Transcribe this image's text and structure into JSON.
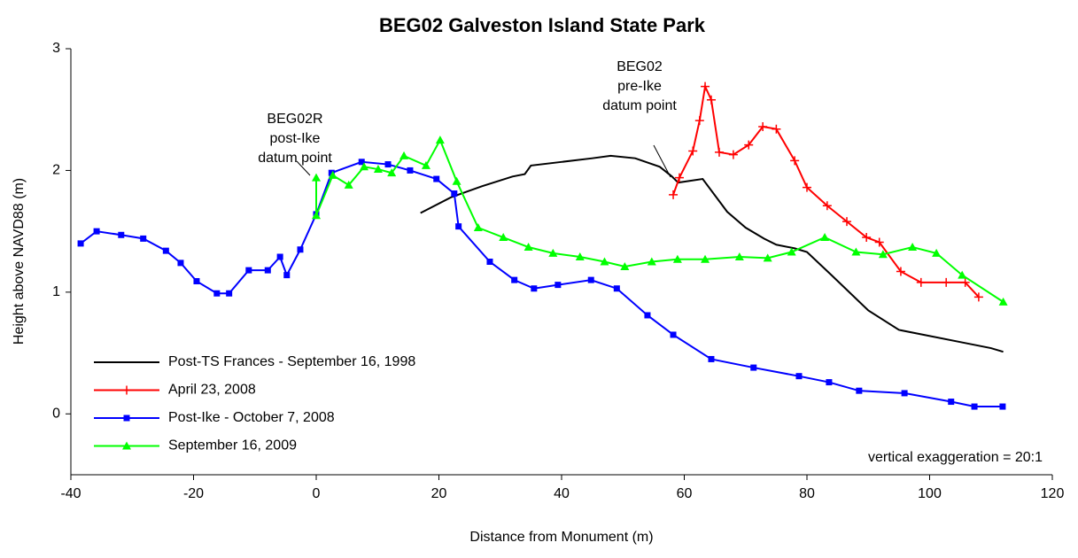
{
  "chart_data": {
    "type": "line",
    "title": "BEG02 Galveston Island State Park",
    "x_label": "Distance from Monument (m)",
    "y_label": "Height above NAVD88 (m)",
    "xlim": [
      -40,
      120
    ],
    "xticks": [
      -40,
      -20,
      0,
      20,
      40,
      60,
      80,
      100,
      120
    ],
    "ylim": [
      -0.5,
      3
    ],
    "yticks": [
      0,
      1,
      2,
      3
    ],
    "legend": "lower left",
    "annotations": [
      {
        "text": [
          "BEG02R",
          "post-Ike",
          "datum point"
        ]
      },
      {
        "text": [
          "BEG02",
          "pre-Ike",
          "datum point"
        ]
      },
      {
        "text": [
          "vertical exaggeration = 20:1"
        ]
      }
    ],
    "series": [
      {
        "name": "Post-TS Frances - September 16, 1998",
        "color": "#000000",
        "marker": "none",
        "x": [
          17,
          22,
          27,
          32,
          34,
          35,
          40,
          45,
          48,
          52,
          56,
          58,
          59,
          63,
          67,
          70,
          73,
          75,
          78,
          80,
          84,
          90,
          95,
          105,
          110,
          112
        ],
        "values": [
          1.65,
          1.78,
          1.87,
          1.95,
          1.97,
          2.04,
          2.07,
          2.1,
          2.12,
          2.1,
          2.03,
          1.95,
          1.9,
          1.93,
          1.66,
          1.53,
          1.44,
          1.39,
          1.36,
          1.33,
          1.14,
          0.85,
          0.69,
          0.59,
          0.54,
          0.51
        ]
      },
      {
        "name": "April 23, 2008",
        "color": "#ff0000",
        "marker": "plus",
        "x": [
          58.2,
          59.2,
          61.4,
          62.5,
          63.4,
          64.4,
          65.7,
          68,
          70.5,
          72.8,
          75,
          78,
          80,
          83.3,
          86.5,
          89.7,
          91.8,
          95.3,
          98.6,
          102.7,
          105.8,
          108
        ],
        "values": [
          1.8,
          1.94,
          2.16,
          2.41,
          2.69,
          2.58,
          2.15,
          2.13,
          2.21,
          2.36,
          2.34,
          2.08,
          1.86,
          1.71,
          1.58,
          1.45,
          1.41,
          1.17,
          1.08,
          1.08,
          1.08,
          0.96
        ]
      },
      {
        "name": "Post-Ike - October 7, 2008",
        "color": "#0000ff",
        "marker": "square",
        "x": [
          -38.4,
          -35.8,
          -31.8,
          -28.2,
          -24.5,
          -22.1,
          -19.5,
          -16.2,
          -14.2,
          -11,
          -7.9,
          -5.9,
          -4.8,
          -2.6,
          0,
          2.5,
          7.4,
          11.7,
          15.3,
          19.6,
          22.5,
          23.2,
          28.3,
          32.3,
          35.5,
          39.4,
          44.8,
          49,
          54,
          58.2,
          64.4,
          71.3,
          78.7,
          83.6,
          88.5,
          95.9,
          103.5,
          107.3,
          111.9
        ],
        "values": [
          1.4,
          1.5,
          1.47,
          1.44,
          1.34,
          1.24,
          1.09,
          0.99,
          0.99,
          1.18,
          1.18,
          1.29,
          1.14,
          1.35,
          1.64,
          1.98,
          2.07,
          2.05,
          2.0,
          1.93,
          1.81,
          1.54,
          1.25,
          1.1,
          1.03,
          1.06,
          1.1,
          1.03,
          0.81,
          0.65,
          0.45,
          0.38,
          0.31,
          0.26,
          0.19,
          0.17,
          0.1,
          0.06,
          0.06
        ]
      },
      {
        "name": "September 16, 2009",
        "color": "#00ff00",
        "marker": "triangle",
        "x": [
          0,
          0,
          2.7,
          5.3,
          7.8,
          10.1,
          12.3,
          14.3,
          17.9,
          20.2,
          22.9,
          26.4,
          30.5,
          34.6,
          38.6,
          43,
          47,
          50.3,
          54.7,
          58.9,
          63.4,
          69,
          73.6,
          77.5,
          82.9,
          88,
          92.4,
          97.2,
          101.1,
          105.3,
          112
        ],
        "values": [
          1.94,
          1.63,
          1.96,
          1.88,
          2.03,
          2.01,
          1.98,
          2.12,
          2.04,
          2.25,
          1.91,
          1.53,
          1.45,
          1.37,
          1.32,
          1.29,
          1.25,
          1.21,
          1.25,
          1.27,
          1.27,
          1.29,
          1.28,
          1.33,
          1.45,
          1.33,
          1.31,
          1.37,
          1.32,
          1.14,
          0.92
        ]
      }
    ]
  }
}
